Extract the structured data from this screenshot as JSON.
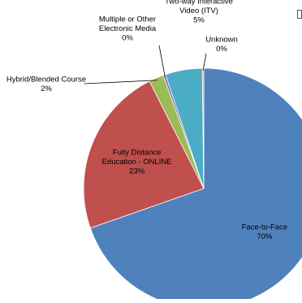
{
  "chart_data": {
    "type": "pie",
    "title": "",
    "slices": [
      {
        "label": [
          "Face-to-Face",
          "70%"
        ],
        "value": 70,
        "color": "#4F81BD"
      },
      {
        "label": [
          "Fully Distance",
          "Education - ONLINE",
          "23%"
        ],
        "value": 23,
        "color": "#C0504D"
      },
      {
        "label": [
          "Hybrid/Blended Course",
          "2%"
        ],
        "value": 2,
        "color": "#9BBB59"
      },
      {
        "label": [
          "Multiple or Other",
          "Electronic Media",
          "0%"
        ],
        "value": 0.3,
        "color": "#8064A2"
      },
      {
        "label": [
          "Two-way Interactive",
          "Video (ITV)",
          "5%"
        ],
        "value": 5,
        "color": "#4BACC6"
      },
      {
        "label": [
          "Unknown",
          "0%"
        ],
        "value": 0.2,
        "color": "#F79646"
      }
    ],
    "start_at": "12 o'clock",
    "direction": "clockwise",
    "legend": "none"
  }
}
